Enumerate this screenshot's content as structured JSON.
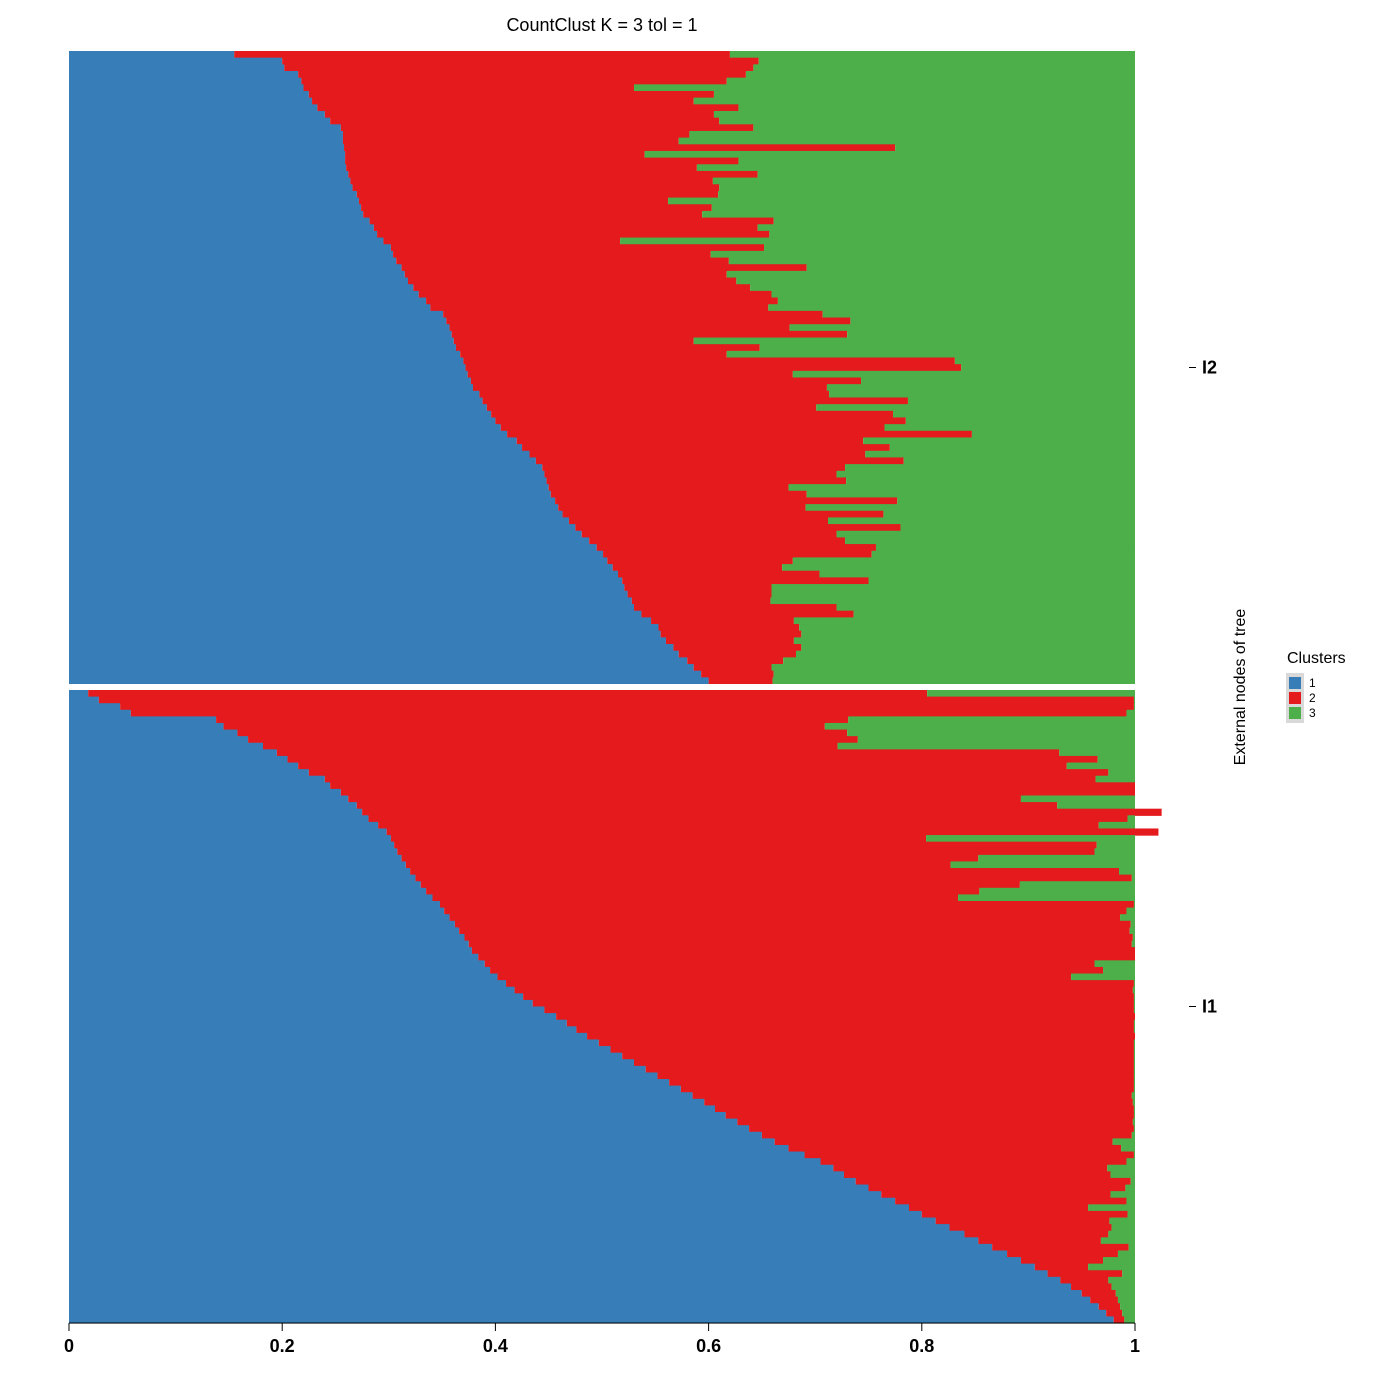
{
  "chart_data": {
    "type": "structure",
    "title": "CountClust K =  3 tol =  1",
    "ylabel": "External nodes of tree",
    "xlim": [
      0,
      1
    ],
    "x_ticks": [
      "0",
      "0.2",
      "0.4",
      "0.6",
      "0.8",
      "1"
    ],
    "legend": {
      "title": "Clusters",
      "placement": "right",
      "items": [
        {
          "name": "1",
          "color": "#377EB8"
        },
        {
          "name": "2",
          "color": "#E41A1C"
        },
        {
          "name": "3",
          "color": "#4DAF4A"
        }
      ]
    },
    "groups": [
      {
        "name": "I2",
        "rows": [
          [
            0.155,
            0.465
          ],
          [
            0.2,
            0.447
          ],
          [
            0.202,
            0.44
          ],
          [
            0.215,
            0.42
          ],
          [
            0.218,
            0.399
          ],
          [
            0.22,
            0.31
          ],
          [
            0.225,
            0.38
          ],
          [
            0.228,
            0.358
          ],
          [
            0.233,
            0.395
          ],
          [
            0.24,
            0.365
          ],
          [
            0.245,
            0.365
          ],
          [
            0.255,
            0.387
          ],
          [
            0.257,
            0.325
          ],
          [
            0.257,
            0.315
          ],
          [
            0.258,
            0.517
          ],
          [
            0.259,
            0.281
          ],
          [
            0.259,
            0.369
          ],
          [
            0.26,
            0.329
          ],
          [
            0.262,
            0.384
          ],
          [
            0.264,
            0.34
          ],
          [
            0.266,
            0.344
          ],
          [
            0.27,
            0.339
          ],
          [
            0.272,
            0.29
          ],
          [
            0.274,
            0.329
          ],
          [
            0.276,
            0.318
          ],
          [
            0.282,
            0.379
          ],
          [
            0.286,
            0.36
          ],
          [
            0.289,
            0.368
          ],
          [
            0.295,
            0.222
          ],
          [
            0.302,
            0.35
          ],
          [
            0.304,
            0.298
          ],
          [
            0.307,
            0.312
          ],
          [
            0.312,
            0.38
          ],
          [
            0.315,
            0.302
          ],
          [
            0.318,
            0.308
          ],
          [
            0.323,
            0.316
          ],
          [
            0.328,
            0.331
          ],
          [
            0.335,
            0.33
          ],
          [
            0.339,
            0.317
          ],
          [
            0.351,
            0.356
          ],
          [
            0.354,
            0.379
          ],
          [
            0.357,
            0.319
          ],
          [
            0.359,
            0.371
          ],
          [
            0.361,
            0.225
          ],
          [
            0.363,
            0.285
          ],
          [
            0.367,
            0.25
          ],
          [
            0.37,
            0.461
          ],
          [
            0.372,
            0.465
          ],
          [
            0.374,
            0.305
          ],
          [
            0.377,
            0.366
          ],
          [
            0.379,
            0.332
          ],
          [
            0.385,
            0.328
          ],
          [
            0.388,
            0.399
          ],
          [
            0.392,
            0.309
          ],
          [
            0.396,
            0.377
          ],
          [
            0.4,
            0.385
          ],
          [
            0.405,
            0.36
          ],
          [
            0.411,
            0.436
          ],
          [
            0.42,
            0.325
          ],
          [
            0.425,
            0.345
          ],
          [
            0.432,
            0.315
          ],
          [
            0.438,
            0.345
          ],
          [
            0.444,
            0.284
          ],
          [
            0.446,
            0.274
          ],
          [
            0.448,
            0.281
          ],
          [
            0.45,
            0.225
          ],
          [
            0.452,
            0.24
          ],
          [
            0.456,
            0.321
          ],
          [
            0.459,
            0.232
          ],
          [
            0.463,
            0.301
          ],
          [
            0.469,
            0.243
          ],
          [
            0.475,
            0.305
          ],
          [
            0.481,
            0.239
          ],
          [
            0.488,
            0.24
          ],
          [
            0.495,
            0.262
          ],
          [
            0.501,
            0.252
          ],
          [
            0.505,
            0.174
          ],
          [
            0.51,
            0.159
          ],
          [
            0.515,
            0.189
          ],
          [
            0.519,
            0.231
          ],
          [
            0.521,
            0.138
          ],
          [
            0.524,
            0.135
          ],
          [
            0.528,
            0.13
          ],
          [
            0.53,
            0.19
          ],
          [
            0.537,
            0.199
          ],
          [
            0.546,
            0.134
          ],
          [
            0.553,
            0.132
          ],
          [
            0.555,
            0.132
          ],
          [
            0.56,
            0.12
          ],
          [
            0.567,
            0.12
          ],
          [
            0.572,
            0.11
          ],
          [
            0.58,
            0.09
          ],
          [
            0.586,
            0.073
          ],
          [
            0.593,
            0.068
          ],
          [
            0.6,
            0.06
          ]
        ]
      },
      {
        "name": "I1",
        "rows": [
          [
            0.018,
            0.787
          ],
          [
            0.028,
            0.971
          ],
          [
            0.048,
            0.951
          ],
          [
            0.058,
            0.934
          ],
          [
            0.138,
            0.593
          ],
          [
            0.145,
            0.564
          ],
          [
            0.158,
            0.572
          ],
          [
            0.168,
            0.572
          ],
          [
            0.182,
            0.539
          ],
          [
            0.195,
            0.734
          ],
          [
            0.205,
            0.76
          ],
          [
            0.215,
            0.721
          ],
          [
            0.225,
            0.75
          ],
          [
            0.24,
            0.723
          ],
          [
            0.245,
            0.755
          ],
          [
            0.255,
            0.745
          ],
          [
            0.262,
            0.631
          ],
          [
            0.27,
            0.657
          ],
          [
            0.275,
            0.75
          ],
          [
            0.281,
            0.712
          ],
          [
            0.29,
            0.676
          ],
          [
            0.298,
            0.724
          ],
          [
            0.302,
            0.502
          ],
          [
            0.305,
            0.659
          ],
          [
            0.308,
            0.654
          ],
          [
            0.312,
            0.541
          ],
          [
            0.316,
            0.511
          ],
          [
            0.32,
            0.665
          ],
          [
            0.325,
            0.672
          ],
          [
            0.33,
            0.562
          ],
          [
            0.335,
            0.519
          ],
          [
            0.341,
            0.493
          ],
          [
            0.348,
            0.651
          ],
          [
            0.352,
            0.64
          ],
          [
            0.357,
            0.629
          ],
          [
            0.362,
            0.634
          ],
          [
            0.366,
            0.629
          ],
          [
            0.371,
            0.627
          ],
          [
            0.375,
            0.622
          ],
          [
            0.378,
            0.622
          ],
          [
            0.384,
            0.616
          ],
          [
            0.39,
            0.572
          ],
          [
            0.395,
            0.575
          ],
          [
            0.402,
            0.538
          ],
          [
            0.41,
            0.589
          ],
          [
            0.418,
            0.58
          ],
          [
            0.426,
            0.573
          ],
          [
            0.435,
            0.564
          ],
          [
            0.446,
            0.553
          ],
          [
            0.457,
            0.543
          ],
          [
            0.467,
            0.532
          ],
          [
            0.476,
            0.523
          ],
          [
            0.486,
            0.514
          ],
          [
            0.497,
            0.502
          ],
          [
            0.508,
            0.491
          ],
          [
            0.519,
            0.48
          ],
          [
            0.53,
            0.469
          ],
          [
            0.541,
            0.458
          ],
          [
            0.552,
            0.447
          ],
          [
            0.563,
            0.436
          ],
          [
            0.574,
            0.425
          ],
          [
            0.585,
            0.412
          ],
          [
            0.596,
            0.402
          ],
          [
            0.606,
            0.393
          ],
          [
            0.616,
            0.383
          ],
          [
            0.627,
            0.371
          ],
          [
            0.638,
            0.361
          ],
          [
            0.65,
            0.347
          ],
          [
            0.662,
            0.317
          ],
          [
            0.675,
            0.312
          ],
          [
            0.69,
            0.309
          ],
          [
            0.705,
            0.287
          ],
          [
            0.717,
            0.257
          ],
          [
            0.727,
            0.25
          ],
          [
            0.738,
            0.258
          ],
          [
            0.75,
            0.241
          ],
          [
            0.762,
            0.215
          ],
          [
            0.775,
            0.217
          ],
          [
            0.788,
            0.168
          ],
          [
            0.8,
            0.193
          ],
          [
            0.813,
            0.163
          ],
          [
            0.826,
            0.152
          ],
          [
            0.84,
            0.135
          ],
          [
            0.853,
            0.115
          ],
          [
            0.866,
            0.128
          ],
          [
            0.88,
            0.104
          ],
          [
            0.893,
            0.077
          ],
          [
            0.906,
            0.05
          ],
          [
            0.918,
            0.07
          ],
          [
            0.93,
            0.045
          ],
          [
            0.94,
            0.038
          ],
          [
            0.95,
            0.032
          ],
          [
            0.958,
            0.026
          ],
          [
            0.966,
            0.02
          ],
          [
            0.973,
            0.015
          ],
          [
            0.98,
            0.01
          ]
        ]
      }
    ]
  }
}
